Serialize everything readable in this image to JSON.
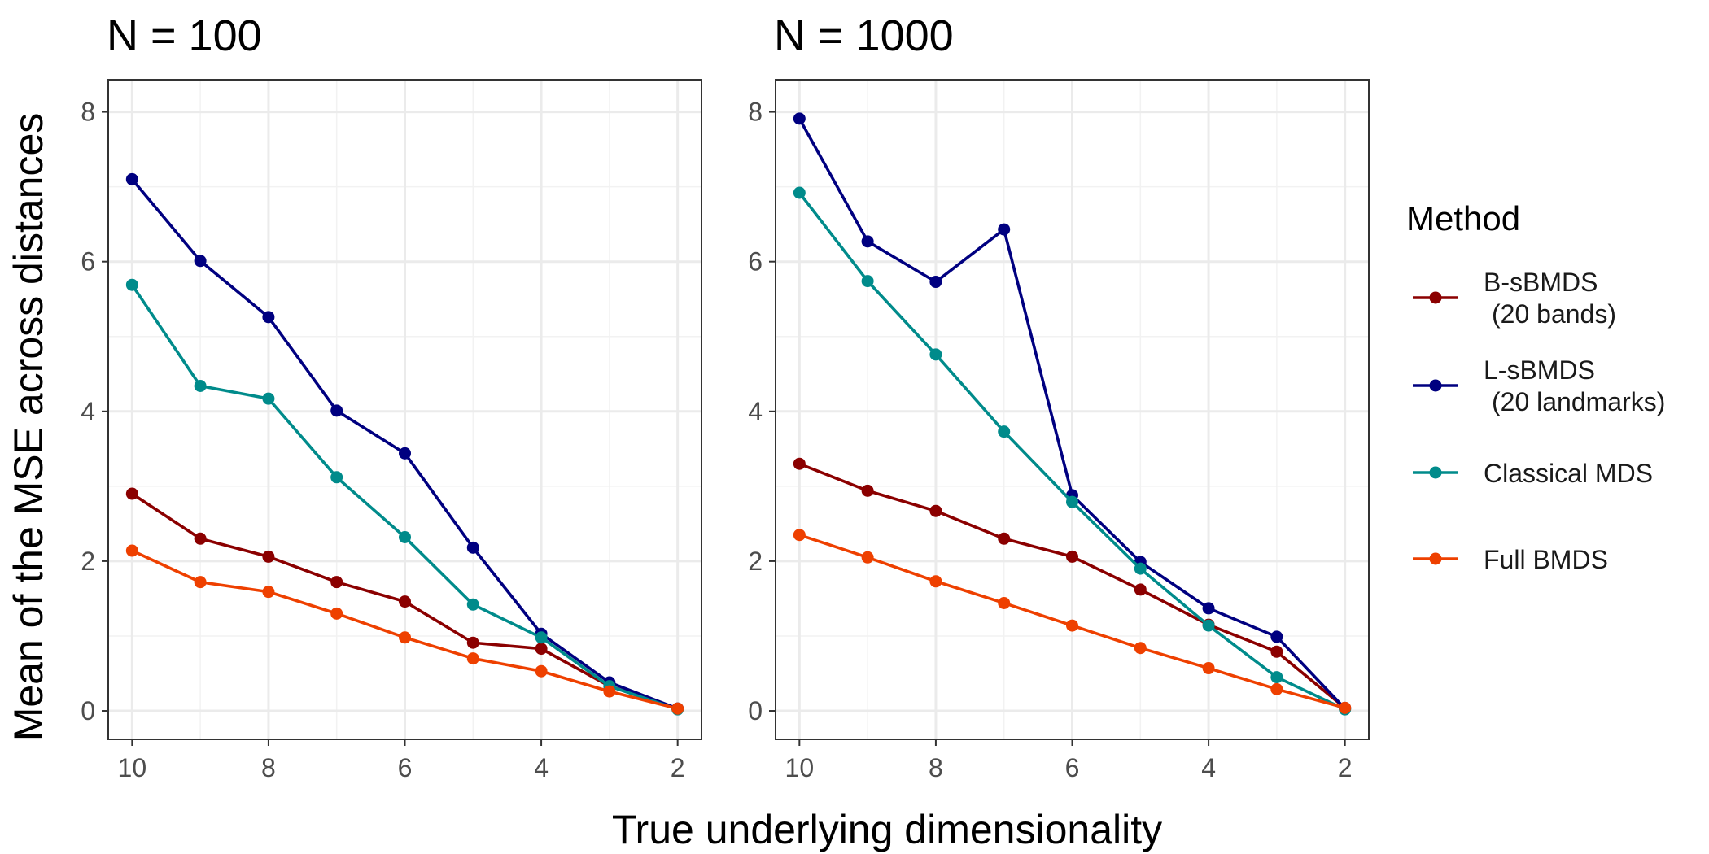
{
  "chart_data": {
    "type": "line",
    "xlabel": "True underlying dimensionality",
    "ylabel": "Mean of the MSE across distances",
    "x_reversed": true,
    "xlim": [
      10,
      2
    ],
    "ylim": [
      0,
      8
    ],
    "x_ticks": [
      10,
      8,
      6,
      4,
      2
    ],
    "y_ticks": [
      0,
      2,
      4,
      6,
      8
    ],
    "grid": true,
    "legend": {
      "title": "Method",
      "placement": "right",
      "entries": [
        {
          "lines": [
            "B-sBMDS",
            "(20 bands)"
          ]
        },
        {
          "lines": [
            "L-sBMDS",
            "(20 landmarks)"
          ]
        },
        {
          "lines": [
            "Classical MDS"
          ]
        },
        {
          "lines": [
            "Full BMDS"
          ]
        }
      ]
    },
    "colors": {
      "B-sBMDS": "#8b0000",
      "L-sBMDS": "#000080",
      "Classical MDS": "#008b8b",
      "Full BMDS": "#ee4000"
    },
    "panels": [
      {
        "title": "N = 100",
        "x": [
          10,
          9,
          8,
          7,
          6,
          5,
          4,
          3,
          2
        ],
        "series": [
          {
            "name": "B-sBMDS",
            "values": [
              2.9,
              2.3,
              2.06,
              1.72,
              1.46,
              0.91,
              0.83,
              0.33,
              0.03
            ]
          },
          {
            "name": "L-sBMDS",
            "values": [
              7.1,
              6.01,
              5.26,
              4.01,
              3.44,
              2.18,
              1.03,
              0.38,
              0.03
            ]
          },
          {
            "name": "Classical MDS",
            "values": [
              5.69,
              4.34,
              4.17,
              3.12,
              2.32,
              1.42,
              0.98,
              0.33,
              0.02
            ]
          },
          {
            "name": "Full BMDS",
            "values": [
              2.14,
              1.72,
              1.59,
              1.3,
              0.98,
              0.7,
              0.53,
              0.26,
              0.03
            ]
          }
        ]
      },
      {
        "title": "N = 1000",
        "x": [
          10,
          9,
          8,
          7,
          6,
          5,
          4,
          3,
          2
        ],
        "series": [
          {
            "name": "B-sBMDS",
            "values": [
              3.3,
              2.94,
              2.67,
              2.3,
              2.06,
              1.62,
              1.15,
              0.79,
              0.04
            ]
          },
          {
            "name": "L-sBMDS",
            "values": [
              7.91,
              6.27,
              5.73,
              6.43,
              2.88,
              1.99,
              1.37,
              0.99,
              0.03
            ]
          },
          {
            "name": "Classical MDS",
            "values": [
              6.92,
              5.74,
              4.76,
              3.73,
              2.79,
              1.9,
              1.14,
              0.45,
              0.02
            ]
          },
          {
            "name": "Full BMDS",
            "values": [
              2.35,
              2.05,
              1.73,
              1.44,
              1.14,
              0.84,
              0.57,
              0.29,
              0.04
            ]
          }
        ]
      }
    ]
  }
}
